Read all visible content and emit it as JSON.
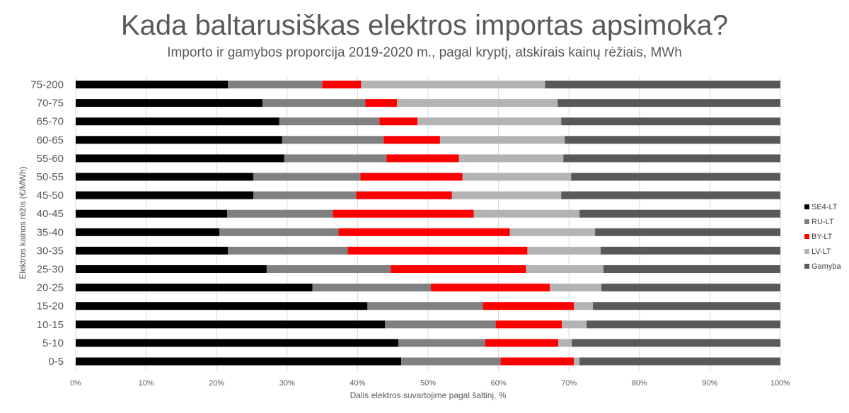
{
  "chart_data": {
    "type": "bar",
    "orientation": "horizontal",
    "stacked": "percent",
    "title": "Kada baltarusiškas elektros importas apsimoka?",
    "subtitle": "Importo ir gamybos proporcija 2019-2020 m., pagal kryptį, atskirais kainų rėžiais, MWh",
    "xlabel": "Dalis elektros suvartojime pagal šaltinį, %",
    "ylabel": "Elektros kainos rėžis (€/MWh)",
    "xlim": [
      0,
      100
    ],
    "x_ticks": [
      "0%",
      "10%",
      "20%",
      "30%",
      "40%",
      "50%",
      "60%",
      "70%",
      "80%",
      "90%",
      "100%"
    ],
    "grid": true,
    "legend_position": "right",
    "categories": [
      "75-200",
      "70-75",
      "65-70",
      "60-65",
      "55-60",
      "50-55",
      "45-50",
      "40-45",
      "35-40",
      "30-35",
      "25-30",
      "20-25",
      "15-20",
      "10-15",
      "5-10",
      "0-5"
    ],
    "series": [
      {
        "name": "SE4-LT",
        "color": "#000000",
        "values": [
          21.6,
          26.5,
          28.9,
          29.3,
          29.6,
          25.2,
          25.2,
          21.5,
          20.4,
          21.6,
          27.1,
          33.6,
          41.4,
          43.9,
          45.8,
          46.2
        ]
      },
      {
        "name": "RU-LT",
        "color": "#808080",
        "values": [
          13.4,
          14.6,
          14.2,
          14.4,
          14.5,
          15.2,
          14.6,
          15.0,
          16.9,
          17.0,
          17.6,
          16.8,
          16.4,
          15.7,
          12.3,
          14.1
        ]
      },
      {
        "name": "BY-LT",
        "color": "#ff0000",
        "values": [
          5.5,
          4.5,
          5.4,
          8.0,
          10.3,
          14.5,
          13.6,
          20.0,
          24.3,
          25.5,
          19.2,
          16.9,
          12.9,
          9.4,
          10.4,
          10.4
        ]
      },
      {
        "name": "LV-LT",
        "color": "#b3b3b3",
        "values": [
          26.1,
          22.8,
          20.4,
          17.7,
          14.8,
          15.4,
          15.5,
          15.0,
          12.1,
          10.4,
          11.0,
          7.3,
          2.7,
          3.5,
          1.9,
          0.8
        ]
      },
      {
        "name": "Gamyba",
        "color": "#595959",
        "values": [
          33.4,
          31.6,
          31.1,
          30.6,
          30.8,
          29.7,
          31.1,
          28.5,
          26.3,
          25.5,
          25.1,
          25.4,
          26.6,
          27.5,
          29.6,
          28.5
        ]
      }
    ]
  }
}
